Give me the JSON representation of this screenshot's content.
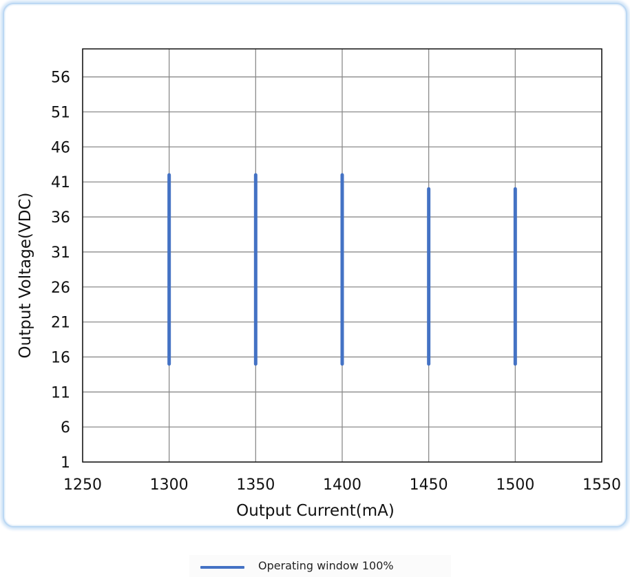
{
  "chart_data": {
    "type": "range-bar",
    "xlabel": "Output Current(mA)",
    "ylabel": "Output Voltage(VDC)",
    "xlim": [
      1250,
      1550
    ],
    "ylim": [
      1,
      60
    ],
    "x_ticks": [
      1250,
      1300,
      1350,
      1400,
      1450,
      1500,
      1550
    ],
    "y_ticks": [
      1,
      6,
      11,
      16,
      21,
      26,
      31,
      36,
      41,
      46,
      51,
      56
    ],
    "grid": true,
    "legend_position": "bottom-center",
    "series": [
      {
        "name": "Operating window 100%",
        "color": "#4472c4",
        "points": [
          {
            "x": 1300,
            "y_min": 15,
            "y_max": 42
          },
          {
            "x": 1350,
            "y_min": 15,
            "y_max": 42
          },
          {
            "x": 1400,
            "y_min": 15,
            "y_max": 42
          },
          {
            "x": 1450,
            "y_min": 15,
            "y_max": 40
          },
          {
            "x": 1500,
            "y_min": 15,
            "y_max": 40
          }
        ]
      }
    ]
  }
}
